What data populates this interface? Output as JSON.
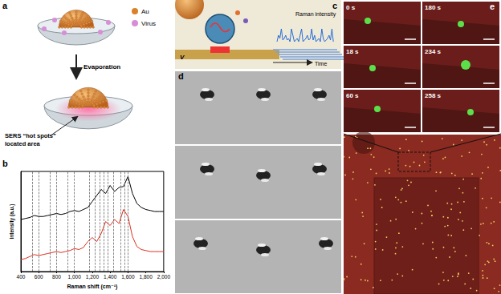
{
  "chart_data": {
    "type": "line",
    "x_label": "Raman shift (cm⁻¹)",
    "y_label": "Intensity (a.u.)",
    "x": [
      400,
      450,
      500,
      550,
      600,
      650,
      700,
      750,
      800,
      850,
      900,
      950,
      1000,
      1050,
      1100,
      1150,
      1200,
      1250,
      1300,
      1350,
      1400,
      1450,
      1500,
      1550,
      1600,
      1650,
      1700,
      1750,
      1800,
      1850,
      1900,
      1950,
      2000
    ],
    "series": [
      {
        "color": "#000000",
        "values": [
          0.52,
          0.53,
          0.54,
          0.56,
          0.55,
          0.55,
          0.56,
          0.57,
          0.58,
          0.57,
          0.58,
          0.6,
          0.61,
          0.6,
          0.62,
          0.64,
          0.7,
          0.76,
          0.82,
          0.78,
          0.86,
          0.8,
          0.84,
          0.85,
          0.95,
          0.78,
          0.68,
          0.64,
          0.62,
          0.61,
          0.6,
          0.6,
          0.6
        ]
      },
      {
        "color": "#e0301e",
        "values": [
          0.12,
          0.13,
          0.15,
          0.17,
          0.16,
          0.17,
          0.18,
          0.19,
          0.2,
          0.19,
          0.2,
          0.21,
          0.23,
          0.22,
          0.24,
          0.3,
          0.34,
          0.3,
          0.38,
          0.5,
          0.46,
          0.52,
          0.48,
          0.62,
          0.55,
          0.35,
          0.25,
          0.22,
          0.21,
          0.2,
          0.2,
          0.2,
          0.2
        ]
      }
    ],
    "xlim": [
      400,
      2000
    ],
    "xticks": [
      400,
      600,
      800,
      1000,
      1200,
      1400,
      1600,
      1800,
      2000
    ],
    "ylim": [
      0,
      1
    ],
    "tick_labels": "x",
    "peak_lines": [
      530,
      600,
      730,
      800,
      920,
      1000,
      1170,
      1230,
      1280,
      1330,
      1370,
      1440,
      1520,
      1560,
      1600
    ]
  },
  "panels": {
    "a": {
      "label": "a",
      "legend_items": [
        {
          "text": "Au",
          "color": "#d9822b"
        },
        {
          "text": "Virus",
          "color": "#d68fd6"
        }
      ],
      "arrow_text": "Evaporation",
      "callout": [
        "SERS “hot spots”",
        "located area"
      ]
    },
    "b": {
      "label": "b"
    },
    "c": {
      "label": "c",
      "electrode_text": "V",
      "signal_text": "Raman intensity",
      "time_text": "Time"
    },
    "d": {
      "label": "d"
    },
    "e": {
      "label": "e",
      "frames": [
        "0 s",
        "18 s",
        "60 s",
        "180 s",
        "234 s",
        "258 s"
      ]
    }
  }
}
